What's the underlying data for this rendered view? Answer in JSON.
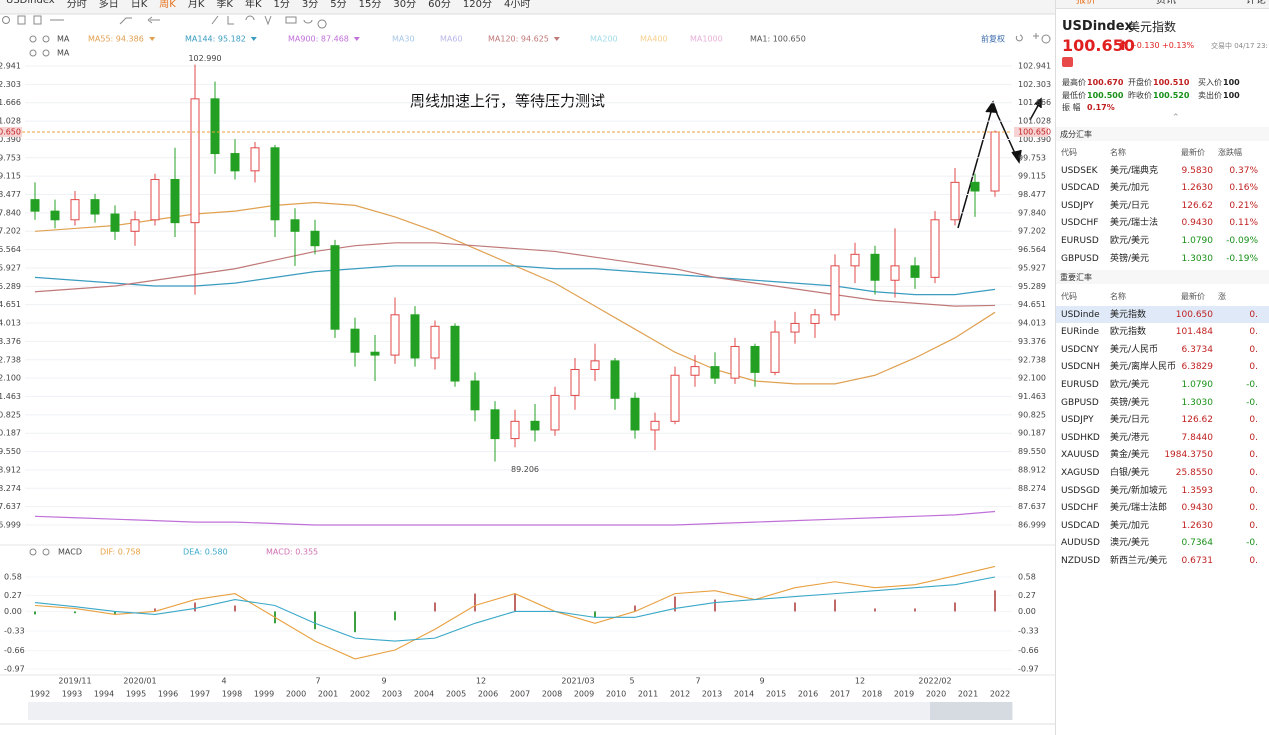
{
  "toolbar": {
    "tabs": [
      "USDindex",
      "分时",
      "多日",
      "日K",
      "周K",
      "月K",
      "季K",
      "年K",
      "1分",
      "3分",
      "5分",
      "15分",
      "30分",
      "60分",
      "120分",
      "4小时"
    ]
  },
  "indicator": "MA",
  "sub_indicator": "MA",
  "adjust": "前复权",
  "annotation": "周线加速上行，等待压力测试",
  "chart_data": [
    {
      "type": "candlestick",
      "ylim": [
        86.999,
        102.941
      ],
      "yticks": [
        102.941,
        102.303,
        101.666,
        101.028,
        {
          "value": 100.39,
          "label": "100.390"
        },
        99.753,
        99.115,
        98.477,
        {
          "value": 97.84,
          "label": "97.840"
        },
        97.202,
        96.564,
        95.927,
        95.289,
        94.651,
        94.013,
        93.376,
        92.738,
        {
          "value": 92.1,
          "label": "92.100"
        },
        91.463,
        90.825,
        90.187,
        {
          "value": 89.55,
          "label": "89.550"
        },
        88.912,
        88.274,
        87.637,
        86.999
      ],
      "grid": true,
      "up_color": "#e04848",
      "down_color": "#23a023",
      "last": {
        "value": 100.65,
        "label": "100.650"
      },
      "max_label": {
        "value": 102.99,
        "label": "102.990"
      },
      "min_label": {
        "value": 89.206,
        "label": "89.206"
      },
      "ohlc": [
        [
          98.3,
          98.9,
          97.6,
          97.9
        ],
        [
          97.9,
          98.3,
          97.3,
          97.6
        ],
        [
          97.6,
          98.6,
          97.4,
          98.3
        ],
        [
          98.3,
          98.5,
          97.5,
          97.8
        ],
        [
          97.8,
          98.1,
          96.9,
          97.2
        ],
        [
          97.2,
          97.9,
          96.7,
          97.6
        ],
        [
          97.6,
          99.2,
          97.4,
          99.0
        ],
        [
          99.0,
          100.1,
          97.0,
          97.5
        ],
        [
          97.5,
          102.99,
          95.0,
          101.8
        ],
        [
          101.8,
          102.4,
          99.2,
          99.9
        ],
        [
          99.9,
          100.4,
          99.0,
          99.3
        ],
        [
          99.3,
          100.3,
          98.9,
          100.1
        ],
        [
          100.1,
          100.2,
          97.0,
          97.6
        ],
        [
          97.6,
          98.0,
          96.0,
          97.2
        ],
        [
          97.2,
          97.6,
          96.4,
          96.7
        ],
        [
          96.7,
          96.9,
          93.5,
          93.8
        ],
        [
          93.8,
          94.2,
          92.5,
          93.0
        ],
        [
          93.0,
          93.6,
          92.0,
          92.9
        ],
        [
          92.9,
          94.9,
          92.6,
          94.3
        ],
        [
          94.3,
          94.6,
          92.5,
          92.8
        ],
        [
          92.8,
          94.1,
          92.4,
          93.9
        ],
        [
          93.9,
          94.0,
          91.8,
          92.0
        ],
        [
          92.0,
          92.3,
          90.6,
          91.0
        ],
        [
          91.0,
          91.3,
          89.206,
          90.0
        ],
        [
          90.0,
          91.0,
          89.7,
          90.6
        ],
        [
          90.6,
          91.2,
          89.9,
          90.3
        ],
        [
          90.3,
          91.8,
          90.1,
          91.5
        ],
        [
          91.5,
          92.8,
          91.0,
          92.4
        ],
        [
          92.4,
          93.3,
          92.0,
          92.7
        ],
        [
          92.7,
          92.8,
          91.0,
          91.4
        ],
        [
          91.4,
          91.6,
          90.0,
          90.3
        ],
        [
          90.3,
          90.9,
          89.6,
          90.6
        ],
        [
          90.6,
          92.5,
          90.5,
          92.2
        ],
        [
          92.2,
          92.9,
          91.8,
          92.5
        ],
        [
          92.5,
          93.0,
          91.9,
          92.1
        ],
        [
          92.1,
          93.5,
          91.9,
          93.2
        ],
        [
          93.2,
          93.3,
          91.8,
          92.3
        ],
        [
          92.3,
          94.1,
          92.2,
          93.7
        ],
        [
          93.7,
          94.4,
          93.3,
          94.0
        ],
        [
          94.0,
          94.5,
          93.5,
          94.3
        ],
        [
          94.3,
          96.4,
          94.1,
          96.0
        ],
        [
          96.0,
          96.8,
          95.4,
          96.4
        ],
        [
          96.4,
          96.7,
          95.0,
          95.5
        ],
        [
          95.5,
          97.3,
          94.9,
          96.0
        ],
        [
          96.0,
          96.3,
          95.2,
          95.6
        ],
        [
          95.6,
          97.9,
          95.4,
          97.6
        ],
        [
          97.6,
          99.4,
          97.4,
          98.9
        ],
        [
          98.9,
          99.2,
          97.7,
          98.6
        ],
        [
          98.6,
          100.7,
          98.4,
          100.65
        ]
      ],
      "series": [
        {
          "name": "MA55: 94.386",
          "color": "#e0a050",
          "values": [
            97.2,
            97.3,
            97.4,
            97.6,
            97.8,
            97.9,
            98.1,
            98.2,
            98.1,
            97.7,
            97.2,
            96.6,
            96.0,
            95.4,
            94.6,
            93.8,
            93.0,
            92.4,
            92.0,
            91.9,
            91.9,
            92.2,
            92.8,
            93.5,
            94.386
          ]
        },
        {
          "name": "MA144: 95.182",
          "color": "#3a9cc0",
          "values": [
            95.6,
            95.5,
            95.4,
            95.3,
            95.3,
            95.4,
            95.6,
            95.8,
            95.9,
            96.0,
            96.0,
            96.0,
            96.0,
            95.9,
            95.9,
            95.8,
            95.7,
            95.6,
            95.5,
            95.4,
            95.3,
            95.1,
            95.0,
            95.0,
            95.182
          ]
        },
        {
          "name": "MA900: 87.468",
          "color": "#c070d8",
          "values": [
            87.3,
            87.25,
            87.2,
            87.15,
            87.1,
            87.1,
            87.05,
            87.0,
            87.0,
            87.0,
            87.0,
            87.0,
            87.0,
            87.0,
            87.0,
            87.0,
            87.0,
            87.05,
            87.1,
            87.15,
            87.2,
            87.25,
            87.3,
            87.35,
            87.468
          ]
        },
        {
          "name": "MA30",
          "color": "#a8c8e8"
        },
        {
          "name": "MA60",
          "color": "#b8b8e8"
        },
        {
          "name": "MA120: 94.625",
          "color": "#c07878",
          "values": [
            95.1,
            95.2,
            95.3,
            95.5,
            95.7,
            95.9,
            96.2,
            96.5,
            96.7,
            96.8,
            96.8,
            96.7,
            96.6,
            96.5,
            96.3,
            96.1,
            95.9,
            95.6,
            95.4,
            95.2,
            95.0,
            94.8,
            94.7,
            94.6,
            94.625
          ]
        },
        {
          "name": "MA200",
          "color": "#a0dce8"
        },
        {
          "name": "MA400",
          "color": "#f5d090"
        },
        {
          "name": "MA1000",
          "color": "#e8b0d8"
        },
        {
          "name": "MA1: 100.650",
          "color": "#555555"
        }
      ]
    },
    {
      "type": "macd",
      "title": "MACD",
      "ylim": [
        -0.97,
        0.58
      ],
      "yticks": [
        0.58,
        0.27,
        {
          "value": 0,
          "label": "0.00"
        },
        -0.33,
        -0.66,
        -0.97
      ],
      "series": [
        {
          "name": "DIF: 0.758",
          "color": "#e8a040",
          "values": [
            0.1,
            0.05,
            -0.05,
            0.0,
            0.2,
            0.3,
            -0.1,
            -0.5,
            -0.8,
            -0.65,
            -0.3,
            0.1,
            0.3,
            0.0,
            -0.2,
            0.0,
            0.3,
            0.35,
            0.2,
            0.4,
            0.5,
            0.4,
            0.45,
            0.6,
            0.758
          ]
        },
        {
          "name": "DEA: 0.580",
          "color": "#3aa8c8",
          "values": [
            0.15,
            0.08,
            0.0,
            -0.05,
            0.05,
            0.2,
            0.1,
            -0.2,
            -0.45,
            -0.5,
            -0.45,
            -0.2,
            0.0,
            0.0,
            -0.1,
            -0.1,
            0.05,
            0.15,
            0.2,
            0.25,
            0.3,
            0.35,
            0.4,
            0.45,
            0.58
          ]
        },
        {
          "name": "MACD: 0.355",
          "color": "#d070b0",
          "up_color": "#c06868",
          "down_color": "#3aa040",
          "values": [
            -0.05,
            -0.03,
            -0.05,
            0.05,
            0.15,
            0.1,
            -0.2,
            -0.3,
            -0.35,
            -0.15,
            0.15,
            0.3,
            0.3,
            0.0,
            -0.1,
            0.1,
            0.25,
            0.2,
            0.0,
            0.15,
            0.2,
            0.05,
            0.05,
            0.15,
            0.355
          ]
        }
      ]
    }
  ],
  "time_axis": {
    "dates": [
      "2019/11",
      "2020/01",
      "4",
      "7",
      "9",
      "12",
      "2021/03",
      "5",
      "7",
      "9",
      "12",
      "2022/02"
    ],
    "years": [
      1992,
      1993,
      1994,
      1995,
      1996,
      1997,
      1998,
      1999,
      2000,
      2001,
      2002,
      2003,
      2004,
      2005,
      2006,
      2007,
      2008,
      2009,
      2010,
      2011,
      2012,
      2013,
      2014,
      2015,
      2016,
      2017,
      2018,
      2019,
      2020,
      2021,
      2022
    ]
  },
  "quote": {
    "tabs": [
      "报价",
      "资讯",
      "评论"
    ],
    "code": "USDindex",
    "name": "美元指数",
    "price": "100.650",
    "change": "+0.130",
    "change_pct": "+0.13%",
    "status": "交易中 04/17 23:",
    "stats": [
      {
        "label": "最高价",
        "value": "100.670"
      },
      {
        "label": "开盘价",
        "value": "100.510"
      },
      {
        "label": "买入价",
        "value": "100"
      },
      {
        "label": "最低价",
        "value": "100.500"
      },
      {
        "label": "昨收价",
        "value": "100.520"
      },
      {
        "label": "卖出价",
        "value": "100"
      },
      {
        "label": "振 幅",
        "value": "0.17%"
      }
    ],
    "components": {
      "title": "成分汇率",
      "headers": [
        "代码",
        "名称",
        "最新价",
        "涨跌幅"
      ],
      "rows": [
        [
          "USDSEK",
          "美元/瑞典克",
          "9.5830",
          "0.37%"
        ],
        [
          "USDCAD",
          "美元/加元",
          "1.2630",
          "0.16%"
        ],
        [
          "USDJPY",
          "美元/日元",
          "126.62",
          "0.21%"
        ],
        [
          "USDCHF",
          "美元/瑞士法",
          "0.9430",
          "0.11%"
        ],
        [
          "EURUSD",
          "欧元/美元",
          "1.0790",
          "-0.09%"
        ],
        [
          "GBPUSD",
          "英镑/美元",
          "1.3030",
          "-0.19%"
        ]
      ]
    },
    "major": {
      "title": "重要汇率",
      "headers": [
        "代码",
        "名称",
        "最新价",
        "涨"
      ],
      "rows": [
        [
          "USDinde",
          "美元指数",
          "100.650",
          "0."
        ],
        [
          "EURinde",
          "欧元指数",
          "101.484",
          "0."
        ],
        [
          "USDCNY",
          "美元/人民币",
          "6.3734",
          "0."
        ],
        [
          "USDCNH",
          "美元/离岸人民币",
          "6.3829",
          "0."
        ],
        [
          "EURUSD",
          "欧元/美元",
          "1.0790",
          "-0."
        ],
        [
          "GBPUSD",
          "英镑/美元",
          "1.3030",
          "-0."
        ],
        [
          "USDJPY",
          "美元/日元",
          "126.62",
          "0."
        ],
        [
          "USDHKD",
          "美元/港元",
          "7.8440",
          "0."
        ],
        [
          "XAUUSD",
          "黄金/美元",
          "1984.3750",
          "0."
        ],
        [
          "XAGUSD",
          "白银/美元",
          "25.8550",
          "0."
        ],
        [
          "USDSGD",
          "美元/新加坡元",
          "1.3593",
          "0."
        ],
        [
          "USDCHF",
          "美元/瑞士法郎",
          "0.9430",
          "0."
        ],
        [
          "USDCAD",
          "美元/加元",
          "1.2630",
          "0."
        ],
        [
          "AUDUSD",
          "澳元/美元",
          "0.7364",
          "-0."
        ],
        [
          "NZDUSD",
          "新西兰元/美元",
          "0.6731",
          "0."
        ]
      ]
    }
  }
}
